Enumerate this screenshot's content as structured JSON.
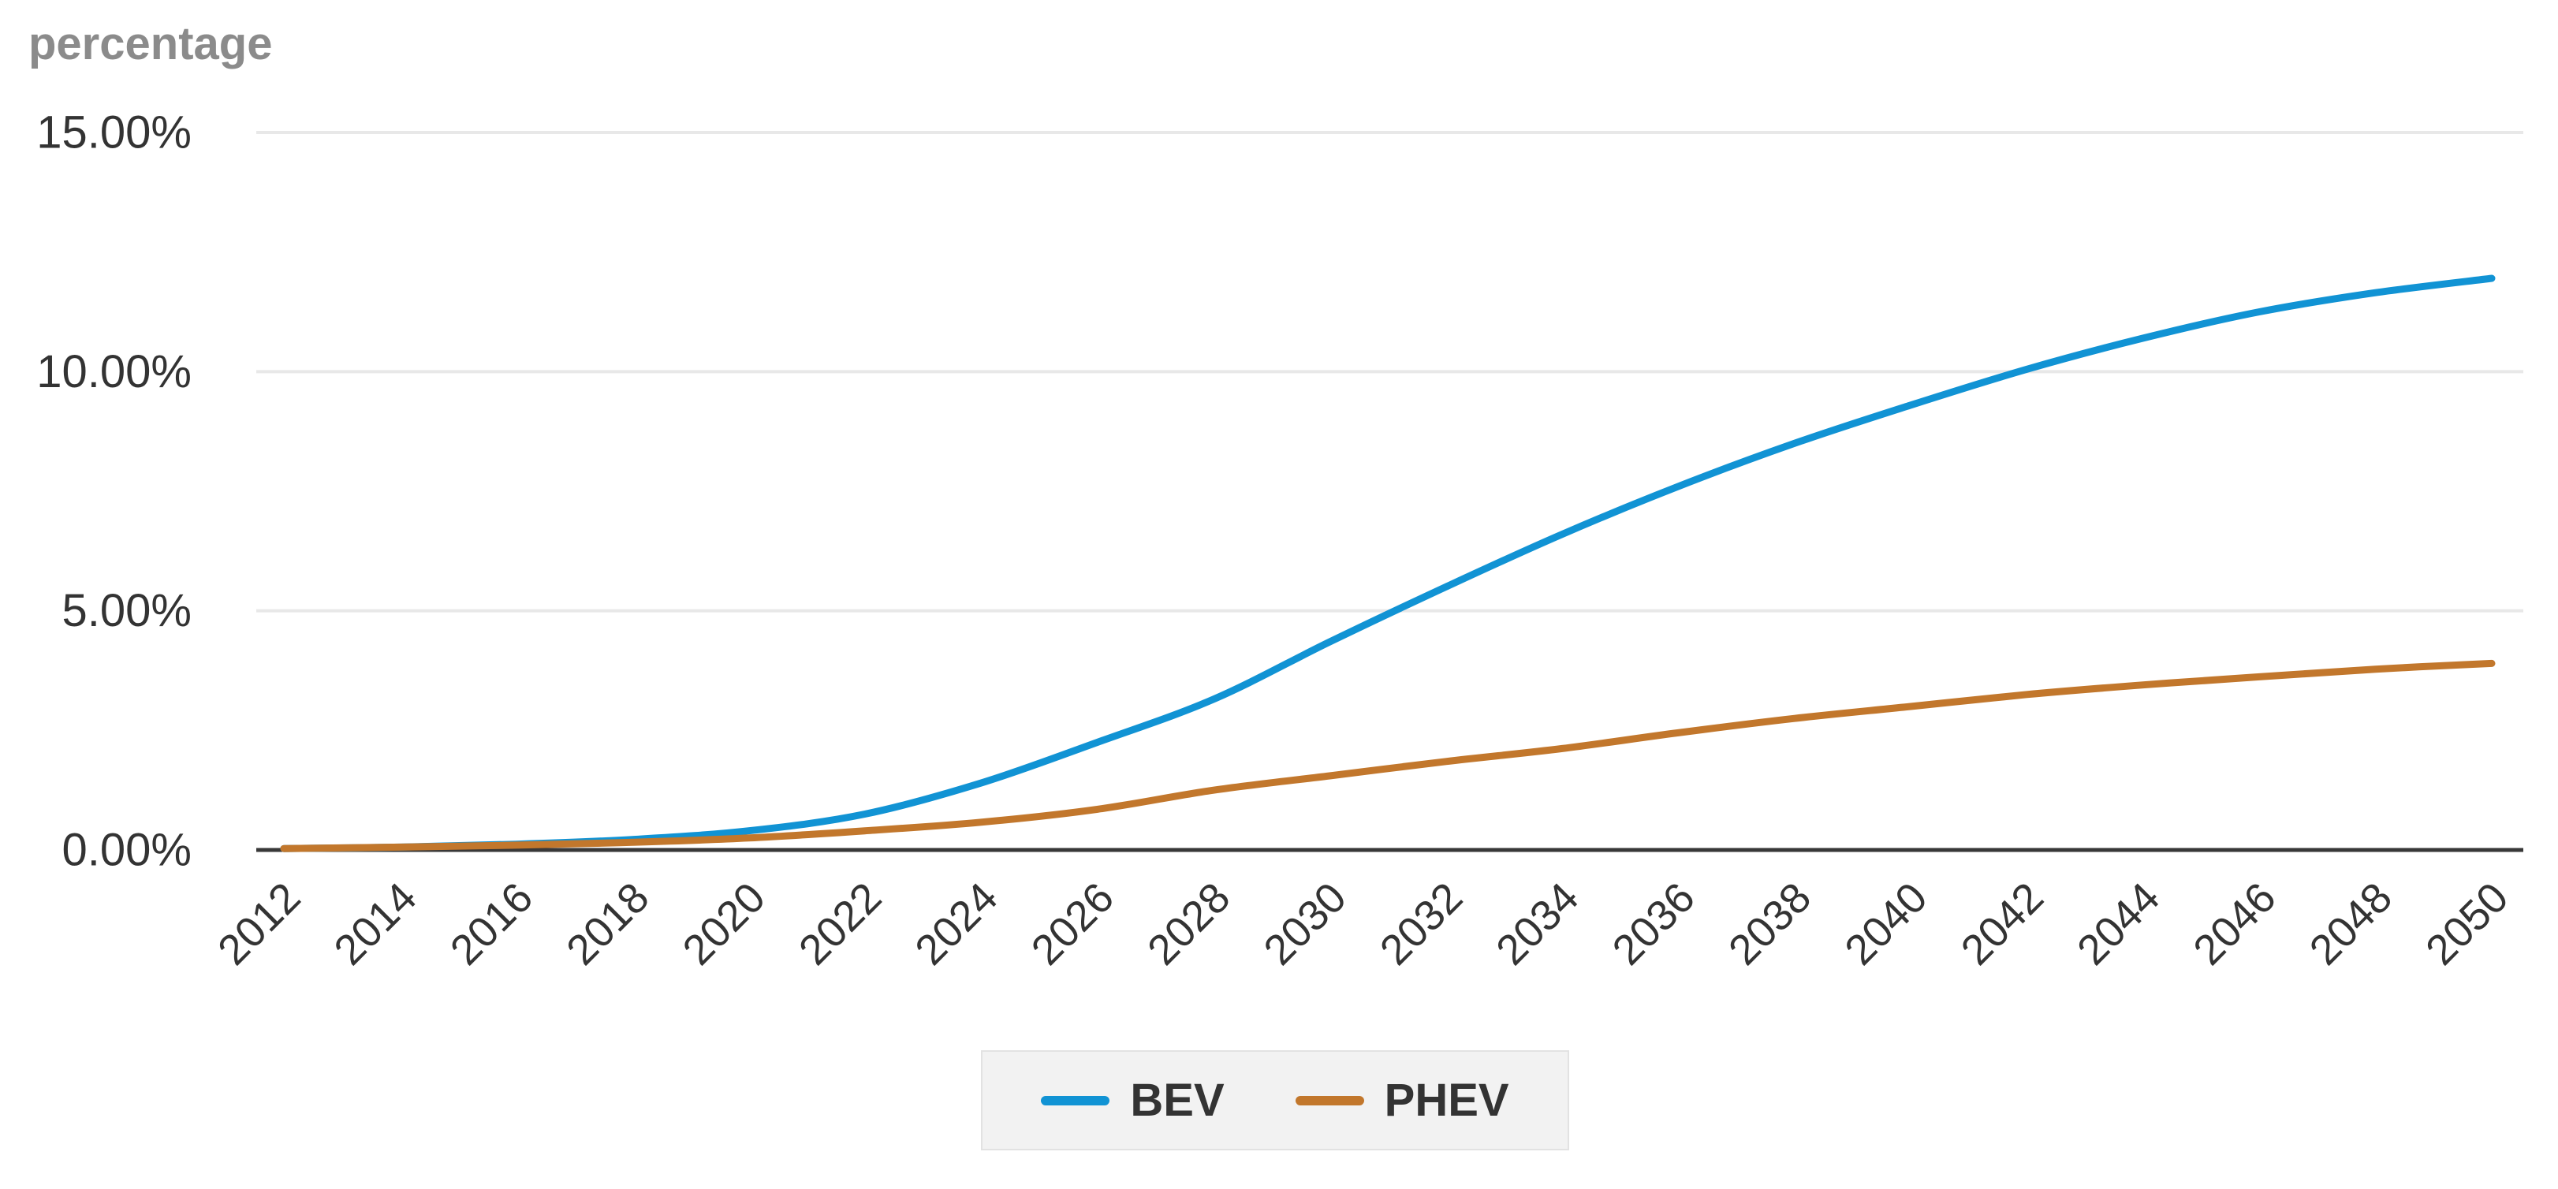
{
  "chart_data": {
    "type": "line",
    "title": "percentage",
    "axis_title": "percentage",
    "xlabel": "",
    "ylabel": "percentage",
    "x": [
      2012,
      2014,
      2016,
      2018,
      2020,
      2022,
      2024,
      2026,
      2028,
      2030,
      2032,
      2034,
      2036,
      2038,
      2040,
      2042,
      2044,
      2046,
      2048,
      2050
    ],
    "series": [
      {
        "name": "BEV",
        "color": "#1193d4",
        "values": [
          0.03,
          0.06,
          0.12,
          0.22,
          0.4,
          0.75,
          1.4,
          2.25,
          3.15,
          4.35,
          5.5,
          6.6,
          7.6,
          8.5,
          9.3,
          10.05,
          10.7,
          11.25,
          11.65,
          11.95
        ]
      },
      {
        "name": "PHEV",
        "color": "#c2772c",
        "values": [
          0.03,
          0.06,
          0.1,
          0.16,
          0.25,
          0.4,
          0.58,
          0.85,
          1.25,
          1.55,
          1.85,
          2.12,
          2.45,
          2.75,
          3.0,
          3.25,
          3.45,
          3.62,
          3.78,
          3.9
        ]
      }
    ],
    "y_ticks": [
      {
        "label": "0.00%",
        "value": 0
      },
      {
        "label": "5.00%",
        "value": 5
      },
      {
        "label": "10.00%",
        "value": 10
      },
      {
        "label": "15.00%",
        "value": 15
      }
    ],
    "ylim": [
      0,
      15
    ],
    "grid": true,
    "legend_position": "bottom",
    "colors": {
      "grid_line": "#e8e8e8",
      "axis_line": "#383838",
      "tick_label": "#333333",
      "axis_title": "#8b8b8b",
      "legend_bg": "#f2f2f2",
      "legend_border": "#e2e2e2"
    }
  }
}
